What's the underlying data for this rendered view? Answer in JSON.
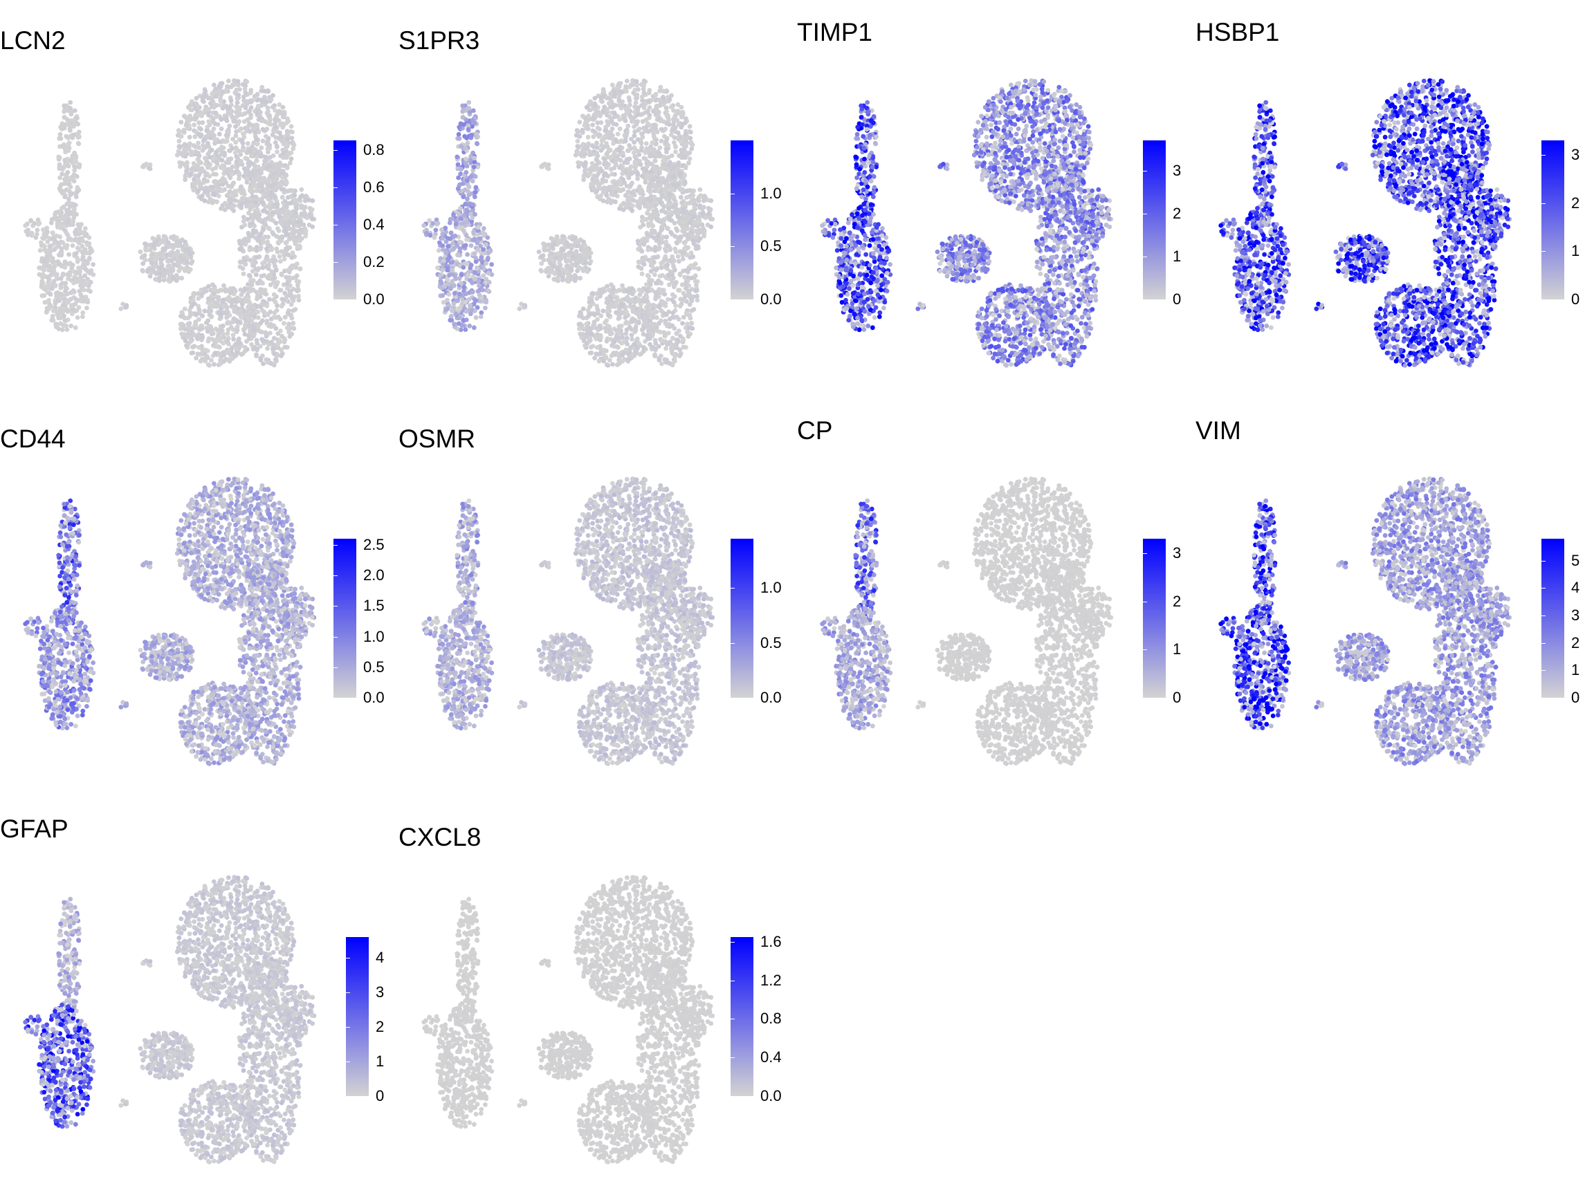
{
  "figure": "UMAP feature plots of gene expression",
  "colors": {
    "low": "#d3d3d3",
    "high": "#0000ff"
  },
  "chart_data": [
    {
      "type": "scatter",
      "title": "LCN2",
      "legend_ticks": [
        "0.0",
        "0.2",
        "0.4",
        "0.6",
        "0.8"
      ],
      "range": [
        0,
        0.85
      ],
      "intensity": {
        "left_cluster_lower": 0.02,
        "left_cluster_upper": 0.02,
        "right": 0.03
      }
    },
    {
      "type": "scatter",
      "title": "S1PR3",
      "legend_ticks": [
        "0.0",
        "0.5",
        "1.0"
      ],
      "range": [
        0,
        1.5
      ],
      "intensity": {
        "left_cluster_lower": 0.2,
        "left_cluster_upper": 0.25,
        "right": 0.03
      }
    },
    {
      "type": "scatter",
      "title": "TIMP1",
      "legend_ticks": [
        "0",
        "1",
        "2",
        "3"
      ],
      "range": [
        0,
        3.7
      ],
      "intensity": {
        "left_cluster_lower": 0.7,
        "left_cluster_upper": 0.7,
        "right": 0.4
      }
    },
    {
      "type": "scatter",
      "title": "HSBP1",
      "legend_ticks": [
        "0",
        "1",
        "2",
        "3"
      ],
      "range": [
        0,
        3.3
      ],
      "intensity": {
        "left_cluster_lower": 0.7,
        "left_cluster_upper": 0.7,
        "right": 0.75
      }
    },
    {
      "type": "scatter",
      "title": "CD44",
      "legend_ticks": [
        "0.0",
        "0.5",
        "1.0",
        "1.5",
        "2.0",
        "2.5"
      ],
      "range": [
        0,
        2.6
      ],
      "intensity": {
        "left_cluster_lower": 0.35,
        "left_cluster_upper": 0.55,
        "right": 0.2
      }
    },
    {
      "type": "scatter",
      "title": "OSMR",
      "legend_ticks": [
        "0.0",
        "0.5",
        "1.0"
      ],
      "range": [
        0,
        1.45
      ],
      "intensity": {
        "left_cluster_lower": 0.2,
        "left_cluster_upper": 0.25,
        "right": 0.08
      }
    },
    {
      "type": "scatter",
      "title": "CP",
      "legend_ticks": [
        "0",
        "1",
        "2",
        "3"
      ],
      "range": [
        0,
        3.3
      ],
      "intensity": {
        "left_cluster_lower": 0.25,
        "left_cluster_upper": 0.55,
        "right": 0.01
      }
    },
    {
      "type": "scatter",
      "title": "VIM",
      "legend_ticks": [
        "0",
        "1",
        "2",
        "3",
        "4",
        "5"
      ],
      "range": [
        0,
        5.8
      ],
      "intensity": {
        "left_cluster_lower": 0.85,
        "left_cluster_upper": 0.75,
        "right": 0.3
      }
    },
    {
      "type": "scatter",
      "title": "GFAP",
      "legend_ticks": [
        "0",
        "1",
        "2",
        "3",
        "4"
      ],
      "range": [
        0,
        4.6
      ],
      "intensity": {
        "left_cluster_lower": 0.65,
        "left_cluster_upper": 0.2,
        "right": 0.06
      }
    },
    {
      "type": "scatter",
      "title": "CXCL8",
      "legend_ticks": [
        "0.0",
        "0.4",
        "0.8",
        "1.2",
        "1.6"
      ],
      "range": [
        0,
        1.65
      ],
      "intensity": {
        "left_cluster_lower": 0.01,
        "left_cluster_upper": 0.01,
        "right": 0.01
      }
    }
  ]
}
